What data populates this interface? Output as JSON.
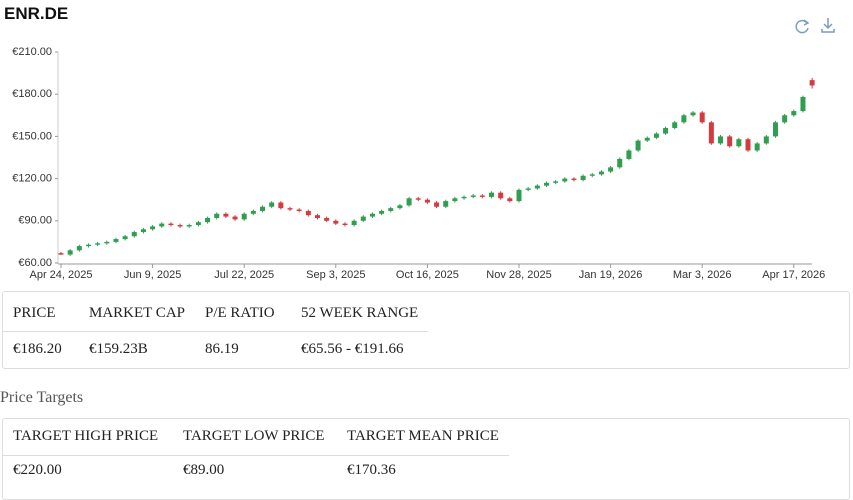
{
  "title": "ENR.DE",
  "chart_data": {
    "type": "candlestick",
    "categories": [
      "Apr 24, 2025",
      null,
      null,
      null,
      null,
      null,
      null,
      null,
      null,
      null,
      "Jun 9, 2025",
      null,
      null,
      null,
      null,
      null,
      null,
      null,
      null,
      null,
      "Jul 22, 2025",
      null,
      null,
      null,
      null,
      null,
      null,
      null,
      null,
      null,
      "Sep 3, 2025",
      null,
      null,
      null,
      null,
      null,
      null,
      null,
      null,
      null,
      "Oct 16, 2025",
      null,
      null,
      null,
      null,
      null,
      null,
      null,
      null,
      null,
      "Nov 28, 2025",
      null,
      null,
      null,
      null,
      null,
      null,
      null,
      null,
      null,
      "Jan 19, 2026",
      null,
      null,
      null,
      null,
      null,
      null,
      null,
      null,
      null,
      "Mar 3, 2026",
      null,
      null,
      null,
      null,
      null,
      null,
      null,
      null,
      null,
      "Apr 17, 2026",
      null,
      null
    ],
    "open": [
      67,
      66,
      69,
      72,
      73,
      74,
      75,
      77,
      79,
      82,
      84,
      86,
      88,
      87,
      86,
      87,
      89,
      92,
      95,
      93,
      91,
      95,
      97,
      100,
      103,
      99,
      98,
      97,
      94,
      92,
      90,
      88,
      87,
      90,
      93,
      95,
      97,
      99,
      101,
      106,
      105,
      103,
      100,
      104,
      106,
      107,
      108,
      107,
      110,
      106,
      104,
      112,
      113,
      115,
      117,
      118,
      120,
      119,
      122,
      123,
      125,
      128,
      134,
      140,
      147,
      149,
      152,
      156,
      160,
      165,
      167,
      160,
      145,
      150,
      143,
      148,
      140,
      145,
      150,
      160,
      165,
      168,
      190
    ],
    "high": [
      67.8,
      70,
      73,
      74,
      75,
      76,
      78,
      80,
      83,
      85,
      87,
      89,
      89,
      88,
      88,
      90,
      93,
      96,
      96,
      94,
      96,
      98,
      101,
      104,
      104,
      100,
      99,
      98,
      95,
      93,
      91,
      89,
      91,
      94,
      96,
      98,
      100,
      102,
      107,
      107,
      106,
      104,
      105,
      107,
      108,
      109,
      109,
      111,
      111,
      107,
      113,
      114,
      116,
      118,
      119,
      121,
      121,
      123,
      124,
      126,
      129,
      135,
      141,
      148,
      150,
      153,
      157,
      161,
      166,
      168,
      168,
      161,
      151,
      151,
      149,
      149,
      146,
      151,
      161,
      166,
      169,
      179,
      191.66
    ],
    "low": [
      65.56,
      65,
      68,
      71,
      72,
      73,
      74,
      76,
      78,
      81,
      83,
      85,
      86,
      85,
      85,
      86,
      88,
      91,
      92,
      90,
      90,
      94,
      96,
      99,
      98,
      97,
      96,
      93,
      91,
      89,
      87,
      86,
      86,
      89,
      92,
      94,
      96,
      98,
      100,
      104,
      102,
      99,
      99,
      103,
      105,
      106,
      106,
      106,
      105,
      103,
      103,
      111,
      112,
      114,
      116,
      117,
      118,
      118,
      121,
      122,
      124,
      127,
      133,
      139,
      146,
      148,
      151,
      155,
      159,
      164,
      159,
      144,
      144,
      142,
      142,
      139,
      139,
      144,
      149,
      159,
      164,
      167,
      184
    ],
    "close": [
      66,
      69,
      72,
      73,
      74,
      75,
      77,
      79,
      82,
      84,
      86,
      88,
      87,
      86,
      87,
      89,
      92,
      95,
      93,
      91,
      95,
      97,
      100,
      103,
      99,
      98,
      97,
      94,
      92,
      90,
      88,
      87,
      90,
      93,
      95,
      97,
      99,
      101,
      106,
      105,
      103,
      100,
      104,
      106,
      107,
      108,
      107,
      110,
      106,
      104,
      112,
      113,
      115,
      117,
      118,
      120,
      119,
      122,
      123,
      125,
      128,
      134,
      140,
      147,
      149,
      152,
      156,
      160,
      165,
      167,
      160,
      145,
      150,
      143,
      148,
      140,
      145,
      150,
      160,
      165,
      168,
      178,
      186.2
    ],
    "up_color": "#2f9e4f",
    "down_color": "#d43a3f",
    "ylim": [
      60,
      210
    ],
    "yticks": [
      {
        "value": 60,
        "label": "€60.00"
      },
      {
        "value": 90,
        "label": "€90.00"
      },
      {
        "value": 120,
        "label": "€120.00"
      },
      {
        "value": 150,
        "label": "€150.00"
      },
      {
        "value": 180,
        "label": "€180.00"
      },
      {
        "value": 210,
        "label": "€210.00"
      }
    ]
  },
  "stats": {
    "headers": [
      "PRICE",
      "MARKET CAP",
      "P/E RATIO",
      "52 WEEK RANGE"
    ],
    "values": [
      "€186.20",
      "€159.23B",
      "86.19",
      "€65.56 - €191.66"
    ]
  },
  "price_targets": {
    "title": "Price Targets",
    "headers": [
      "TARGET HIGH PRICE",
      "TARGET LOW PRICE",
      "TARGET MEAN PRICE"
    ],
    "values": [
      "€220.00",
      "€89.00",
      "€170.36"
    ]
  }
}
